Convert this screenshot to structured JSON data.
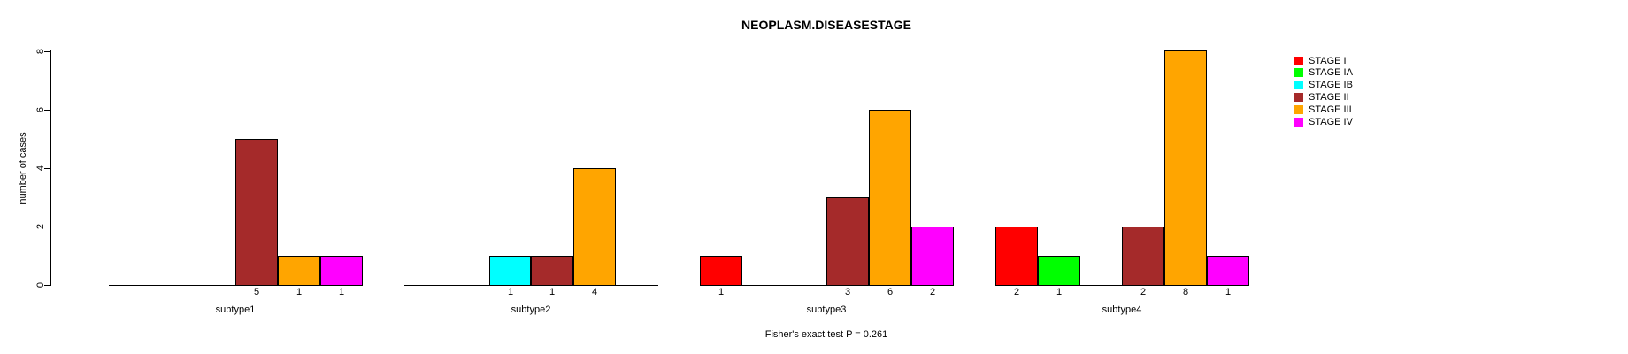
{
  "chart_data": {
    "type": "bar",
    "title": "NEOPLASM.DISEASESTAGE",
    "ylabel": "number of cases",
    "footnote": "Fisher's exact test P = 0.261",
    "ylim": [
      0,
      8
    ],
    "yticks": [
      0,
      2,
      4,
      6,
      8
    ],
    "grid": false,
    "legend_position": "right",
    "legend": [
      {
        "label": "STAGE I",
        "color": "#FF0000"
      },
      {
        "label": "STAGE IA",
        "color": "#00FF00"
      },
      {
        "label": "STAGE IB",
        "color": "#00FFFF"
      },
      {
        "label": "STAGE II",
        "color": "#A52A2A"
      },
      {
        "label": "STAGE III",
        "color": "#FFA500"
      },
      {
        "label": "STAGE IV",
        "color": "#FF00FF"
      }
    ],
    "categories": [
      "subtype1",
      "subtype2",
      "subtype3",
      "subtype4"
    ],
    "series": [
      {
        "name": "STAGE I",
        "values": [
          0,
          0,
          1,
          2
        ]
      },
      {
        "name": "STAGE IA",
        "values": [
          0,
          0,
          0,
          1
        ]
      },
      {
        "name": "STAGE IB",
        "values": [
          0,
          1,
          0,
          0
        ]
      },
      {
        "name": "STAGE II",
        "values": [
          5,
          1,
          3,
          2
        ]
      },
      {
        "name": "STAGE III",
        "values": [
          1,
          4,
          6,
          8
        ]
      },
      {
        "name": "STAGE IV",
        "values": [
          1,
          0,
          2,
          1
        ]
      }
    ],
    "group_totals_note": "bar count labels shown under each non-zero bar",
    "axis_color": "#000000",
    "bar_border_color": "#000000",
    "background_color": "#FFFFFF"
  }
}
